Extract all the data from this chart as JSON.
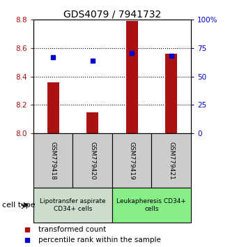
{
  "title": "GDS4079 / 7941732",
  "samples": [
    "GSM779418",
    "GSM779420",
    "GSM779419",
    "GSM779421"
  ],
  "bar_values": [
    8.36,
    8.15,
    8.79,
    8.56
  ],
  "bar_base": 8.0,
  "dot_values": [
    8.535,
    8.51,
    8.565,
    8.545
  ],
  "ylim": [
    8.0,
    8.8
  ],
  "yticks_left": [
    8.0,
    8.2,
    8.4,
    8.6,
    8.8
  ],
  "yticks_right": [
    0,
    25,
    50,
    75,
    100
  ],
  "yticks_right_labels": [
    "0",
    "25",
    "50",
    "75",
    "100%"
  ],
  "bar_color": "#aa1111",
  "dot_color": "#0000cc",
  "cell_groups": [
    {
      "label": "Lipotransfer aspirate\nCD34+ cells",
      "indices": [
        0,
        1
      ],
      "color": "#ccddcc"
    },
    {
      "label": "Leukapheresis CD34+\ncells",
      "indices": [
        2,
        3
      ],
      "color": "#88ee88"
    }
  ],
  "cell_type_label": "cell type",
  "legend_bar_label": "transformed count",
  "legend_dot_label": "percentile rank within the sample",
  "title_fontsize": 10,
  "tick_fontsize": 7.5,
  "sample_fontsize": 6.5,
  "group_fontsize": 6.5,
  "legend_fontsize": 7.5,
  "bar_width": 0.3,
  "dot_markersize": 4.5,
  "grid_yticks": [
    8.2,
    8.4,
    8.6
  ]
}
